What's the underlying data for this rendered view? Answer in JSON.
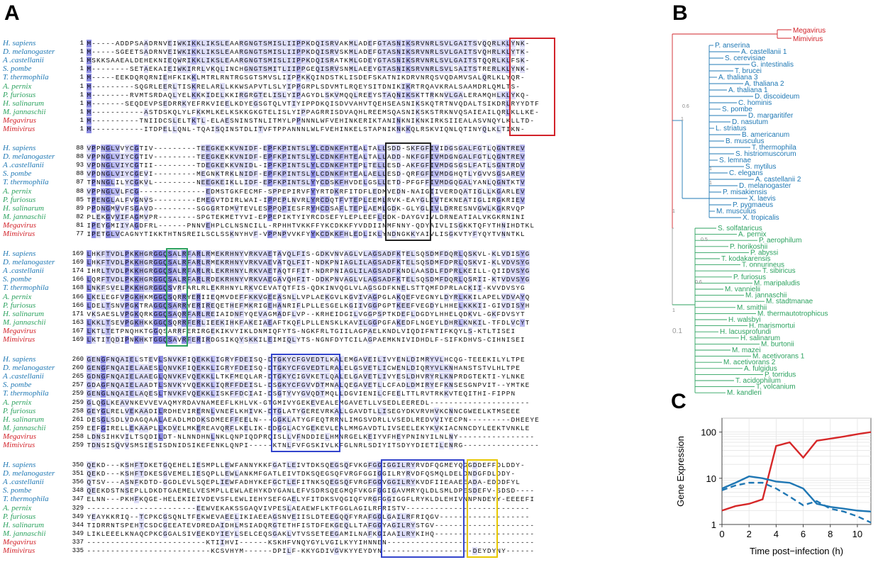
{
  "panels": {
    "a": "A",
    "b": "B",
    "c": "C"
  },
  "colors": {
    "virus": "#d2232a",
    "eukaryote": "#1f78b4",
    "archaea": "#2ca25f"
  },
  "alignment": {
    "blocks": [
      {
        "rows": [
          {
            "species": "H. sapiens",
            "group": "eukaryote",
            "start": "1",
            "seq": "M-----ADDPSAADRNVEIWKIKKLIKSLEAARGNGTSMISLIIPPKDQISRVAKMLADEFGTASNIKSRVNRLSVLGAITSVQQRLKLYNK-"
          },
          {
            "species": "D. melanogaster",
            "group": "eukaryote",
            "start": "1",
            "seq": "M-----SGEETSADRNVEIWKIKKLIKSLEAARGNGTSMISLIIPPKDQISRVSKMLADEFGTASNIKSRVNRLSVLGAITSVQHRLKLYTK-"
          },
          {
            "species": "A .castellanii",
            "group": "eukaryote",
            "start": "1",
            "seq": "MSKKSAAEALDEHEKNIEQWRIKKLIKSLEAARGNGTSMISLIIPPKDQISRATKMLGDEYGTASNIKSRVNRLSVLGAITSTQQRLKLFSK-"
          },
          {
            "species": "S. pombe",
            "group": "eukaryote",
            "start": "1",
            "seq": "M--------SETAEKAIEIWKIRRLVKQLINCHGNGTSMITLIIPPGEQISRVSNMLAEEYGTASNIKSRVNRLSVLSAITSTRERLKLYNK-"
          },
          {
            "species": "T. thermophila",
            "group": "eukaryote",
            "start": "1",
            "seq": "M-----EEKDQRQRNIEHFKIKKLMTRLRNTRGSGTSMVSLIIPPKKQINDSTKLISDEFSKATNIKDRVNRQSVQDAMVSALQRLKLYQR-"
          },
          {
            "species": "A. pernix",
            "group": "archaea",
            "start": "1",
            "seq": "M---------SQGRLEERLTISKRELARLLKKWSAPVTLSLYIPPGRPLSDVMTLRQEYSITDNIKIKRTRQAVKRALSAAMDRLQMLTS-"
          },
          {
            "species": "P. furiosus",
            "group": "archaea",
            "start": "1",
            "seq": "M--------RVMTSRDAQLYELKKKIDELKKIRGRGTELISLYIPAGYDLSKVMQQLREEYSTAQNIKSKTTRKNVLGALERAMQHLKLYKQ-"
          },
          {
            "species": "H. salinarum",
            "group": "archaea",
            "start": "1",
            "seq": "M-------SEQDEVPSEDRRKYEFRKVIEELKDYEGSGTQLVTIYIPPDKQISDVVAHVTQEHSEASNIKSKQTRTNVQDALTSIKDRLRYYDTF"
          },
          {
            "species": "M. jannaschii",
            "group": "archaea",
            "start": "1",
            "seq": "M-----------ASTDSKQLYLFKKMLKELKSKKGKGTELISLYIPPAGRRISDVAQHLREEMSQASNIKSKSTRKNVQSAIEAILQRLKLLKE-"
          },
          {
            "species": "Megavirus",
            "group": "virus",
            "start": "1",
            "seq": "M----------TNIIDCSLELTKTL-ELAESNINSTNLITMYLPPNNNLWFVEHINKERIKTANINKNIKNKIRKSIIEALASVNQYLKLLTD-"
          },
          {
            "species": "Mimivirus",
            "group": "virus",
            "start": "1",
            "seq": "M-----------ITDPELLQNL-TQAISQINSTDLITVFTPPANNNLWLFVEHINKELSTAPNIKNKKQLRSKVIQNLQTINYQLKLTIKN-"
          }
        ]
      },
      {
        "rows": [
          {
            "species": "H. sapiens",
            "group": "eukaryote",
            "start": "88",
            "seq": "VPPNGLVVYCGTIV---------TEEGKEKKVNIDF-EPFKPINTSLYLCDNKFHTEALTALLSDD-SKFGFIVIDGSGALFGTLQGNTREV"
          },
          {
            "species": "D. melanogaster",
            "group": "eukaryote",
            "start": "88",
            "seq": "VPPNGLVIYCGTIV---------TEEGKEKKVNIDF-EPFKPINTSLYLCDNKFHTEALTALLADD-NKFGFIVMDGNGALFGTLQGNTREV"
          },
          {
            "species": "A .castellanii",
            "group": "eukaryote",
            "start": "93",
            "seq": "VPDNGLVIYCGTII---------TDEGKEKKVNIDL-IPFKPINTSLYLCDNKFHTEPLTELLESD-AKFGFIVMDGSGSLFATLSGNTRDV"
          },
          {
            "species": "S. pombe",
            "group": "eukaryote",
            "start": "88",
            "seq": "VPDNGLVIYCGEVI---------MEGNKTRKLNIDF-EPFKPINTSLYLCDNKFHTEALAELLESD-QRFGFIVMDGHQTLYGVVSGSAREV"
          },
          {
            "species": "T. thermophila",
            "group": "eukaryote",
            "start": "87",
            "seq": "TPNNGLILYCGKVL---------NEEGKEIKLLIDF-EPFKPINTSLYYCDSKFHVDELGSLLETD-PFGFFIVMDGQGALYANLQGNTKTV"
          },
          {
            "species": "A. pernix",
            "group": "archaea",
            "start": "88",
            "seq": "VPPNGLVLFCG--------------EDMSTGKFECMF-SPPEPIRVFYYRTDKRFITDFLEDMVEDN-NAIGIIVERDQATIGLLKGARLEV"
          },
          {
            "species": "P. furiosus",
            "group": "archaea",
            "start": "85",
            "seq": "TPENGLALFVGNVS---------EMEGVTDIRLWAI-IPPEPLNVRLYRCDQTFVTEPLEEMLRVK-EAYGLIVTEKNEATIGLIRGKRIEV"
          },
          {
            "species": "H. salinarum",
            "group": "archaea",
            "start": "89",
            "seq": "PPDNGMVVFSGAVD---------SGGGRTDMVTEVLESPPQPIESFRYHCDSAFLTEPLAEMLGDK-GLYGLIVLDRRESNVGWLKGKRVQP"
          },
          {
            "species": "M. jannaschii",
            "group": "archaea",
            "start": "82",
            "seq": "PLEKGVVIFAGMVPR--------SPGTEKMETYVI-EPPEPIKTYIYRCDSEFYLEPLEEFLEDK-DAYGVIVLDRNEATIALVKGKRNINI"
          },
          {
            "species": "Megavirus",
            "group": "virus",
            "start": "81",
            "seq": "IPEYGMIIYAGDFRL------PNNVEHPLCLNSNCILL-RPHHTVKKFFYKCDKKFYVDDIINMFNNY-QDYAIVLISGKKTQFYTHNIHDTKL"
          },
          {
            "species": "Mimivirus",
            "group": "virus",
            "start": "77",
            "seq": "IPETGLVCAGNYTIKKTHTNSREILSCLSSKNYHVF-VPPNPVVKFYYKCDKKFHLEDLIKLYNDNGKKYAIVLISGKVTYFYQYTVNNTKL"
          }
        ]
      },
      {
        "rows": [
          {
            "species": "H. sapiens",
            "group": "eukaryote",
            "start": "169",
            "seq": "LHKFTVDLPKKHGRGGQSALRFARLRMEKRHNYVRKVAETAVQLFIS-GDKVNVAGLVLAGSADFKTELSQSDMFDQRLQSKVL-KLVDISYG"
          },
          {
            "species": "D. melanogaster",
            "group": "eukaryote",
            "start": "169",
            "seq": "LHKFTVDLPKKHGRGGQSALRFARLRMEKRHNYVRKVAEVATQLFIT-NDKPNIAGLILAGSADFKTELSQSDMFDPRLQSKVI-KLVDVSYG"
          },
          {
            "species": "A .castellanii",
            "group": "eukaryote",
            "start": "174",
            "seq": "IHRLTVDLPKKHGRGGQSALRFARLRLEKRHNYLRKVAETAQTFFIT-NDRPNIAGLILAGSADFKNDLAASDLFDPRLKEILL-QIIDVSYG"
          },
          {
            "species": "S. pombe",
            "group": "eukaryote",
            "start": "166",
            "seq": "LQRFTVDLPKKHGRGGQSALRFARLRDEKRHNYVRKVAEGAVQHFIT-DDKPNVAGLVLAGSADFKTELSQSDMFDQRLQSRII-KTVDVSYG"
          },
          {
            "species": "T. thermophila",
            "group": "eukaryote",
            "start": "168",
            "seq": "LNKFSVELPKKHGRGGQSVRFARLRLEKRHNYLRKVCEVATQTFIS-QDKINVQGLVLAGSGDFKNELSTTQMFDPRLACKII-KVVDVSYG"
          },
          {
            "species": "A. pernix",
            "group": "archaea",
            "start": "166",
            "seq": "LKELEGFVPGKHKMGGQSQRRYERIIEQMVDEFFKKVGEEASNLLVPLAEKGVLKGVIVAGPGLAKQEFVEGNYLDYRLKKILAPELVDVAYQ"
          },
          {
            "species": "P. furiosus",
            "group": "archaea",
            "start": "166",
            "seq": "LDELTSNVPGKTRAGGQSARRYERIREQETHEFMKRIGEHANRIFLPLLESGELKGIIVGGPGPTKEEFVEGDYLHHELKKKII-GIVDISYH"
          },
          {
            "species": "H. salinarum",
            "group": "archaea",
            "start": "171",
            "seq": "VKSAESLVPGKQRKGGQSAQRFARLREIAIDNFYQEVAGMADFLVP--KRHEIDGILVGGPSPTKDEFLDGDYLHHELQDKVL-GKFDVSYT"
          },
          {
            "species": "M. jannaschii",
            "group": "archaea",
            "start": "163",
            "seq": "LKKLTSEVPGKHKKGGQSQRRFERLIEEKIHKFAKEIAEAFTKQFLPLLENSKLKAVILGGPGFAKEDFLNGEYLDHRLKNKIL-TFDLVCYT"
          },
          {
            "species": "Megavirus",
            "group": "virus",
            "start": "167",
            "seq": "LKTLTETPNQHKTGGQSARRFERIRGEKIKVYIKLDNMIQFYTS-NGKFRLTGIILAGPAELKNDLVIQDIFNTIFKQYLS-KTLTISEI"
          },
          {
            "species": "Mimivirus",
            "group": "virus",
            "start": "169",
            "seq": "LKTITQDIPNKHKTGGQSAVRFERIRDGSIKQYSKKILEIMIQLYTS-NGNFDYTCILAGPAEMKNIVIDHDLF-SIFKDHVS-CIHNISEI"
          }
        ]
      },
      {
        "rows": [
          {
            "species": "H. sapiens",
            "group": "eukaryote",
            "start": "260",
            "seq": "GENGFNQAIELSTEVLSNVKFIQEKKLIGRYFDEISQ-DTGKYCFGVEDTLKALEMGAVEILIVYENLDIMRYVLHCQG-TEEEKILYLTPE"
          },
          {
            "species": "D. melanogaster",
            "group": "eukaryote",
            "start": "260",
            "seq": "GENGFNQAIELAAESLQNVKFIQEKKLIGRYFDEISQ-DTGKYCFGVEDTLRALELGSVETLICWENLDIQRYVLKNHANSTSTVLHLTPE"
          },
          {
            "species": "A .castellanii",
            "group": "eukaryote",
            "start": "265",
            "seq": "GDNGFNQAIELAAEGLQNVKFVQEKKLLTKFMEQLAR-DTGKYCIGVKETLQALELGAVETLIVYESLDHVRYRLKNPRDGTEKTI-YLNKE"
          },
          {
            "species": "S. pombe",
            "group": "eukaryote",
            "start": "257",
            "seq": "GDAGFNQAIELAADTLSNVKYVQEKKLIQRFFDEISL-DSGKYCFGVVDTMNALQEGAVETLLCFADLDMIRYEFKNSESGNPVIT--YMTKE"
          },
          {
            "species": "T. thermophila",
            "group": "eukaryote",
            "start": "259",
            "seq": "GENGLNQAIELAQESLTNVKFVQEKKLISKFFDCIAI-DSGTYVYGVQDTMQLLDGVIENILCFEELTTLRVTRKKVTEQITHI-FIPPN"
          },
          {
            "species": "A. pernix",
            "group": "archaea",
            "start": "259",
            "seq": "GLQGLKEAVNKEVVEVAQMYRDAVNAMEEFLKHLVK-GTGMIVYGEKEVEALEMGAVETLLVSEDLEEREDL---------------------"
          },
          {
            "species": "P. furiosus",
            "group": "archaea",
            "start": "258",
            "seq": "GEYGLRELVEKAADILRDHEVIRERNLVNEFLKHIVK-DTGLATYGEREVRKALLGAVDTLLISEGYDKVRVHVKCNNCGWEELKTMSEEE"
          },
          {
            "species": "H. salinarum",
            "group": "archaea",
            "start": "261",
            "seq": "DESGLSDLVDAGQAALAEADLMDDKSDMEEFFEELN---GGKLATYGFEQTRRNLIMGSVDRLLVSEDLREDVVIYECPN---------DHEEYE"
          },
          {
            "species": "M. jannaschii",
            "group": "archaea",
            "start": "259",
            "seq": "EEFGIRELLEKAAPLLKDVELMKEREAVQRFLKELIK-EDGGLACYGEKEVLEALMMGAVDTLIVSEELEKYKVKIACNNCDYLEEKTVNKLE"
          },
          {
            "species": "Megavirus",
            "group": "virus",
            "start": "258",
            "seq": "LDNSIHKVILTSQDILDT-NLNNDHNLNKLQNPIQDPRQISLLVFNDDIELHMNRGELKEIYVFHEYPNINYILNLNY----------------"
          },
          {
            "species": "Mimivirus",
            "group": "virus",
            "start": "259",
            "seq": "TDNSISQVVSMSIESISDNIDSIKEFENKLQNPI-----KTNLFVFGSKIVLKFGLNRLSDIYITSDYYDIETILENRG----------------"
          }
        ]
      },
      {
        "rows": [
          {
            "species": "H. sapiens",
            "group": "eukaryote",
            "start": "350",
            "seq": "QEKD---KSHFTDKETGQEHELIESMPLLEWFANNYKKFGATLEIVTDKSQEGSQFVKGFGGIGGILRYRVDFQGMEYQGGDDEFFDLDDY-"
          },
          {
            "species": "D. melanogaster",
            "group": "eukaryote",
            "start": "351",
            "seq": "QEKD---KSHFTDKESGVEMELIESQPLLEWLANKMFGATLEIVTDKSQEGSQFVRGFGGIGGILRYRVDFQSMQLDELDNDGFDLDDY-"
          },
          {
            "species": "A .castellanii",
            "group": "eukaryote",
            "start": "356",
            "seq": "QTSV---ASNFKDTD-GGDLEVLSQEPLIEWFADHYKEFGCTLEFITNKSQEGSQFVRGFGGVGGILRYKVDFIIEAAEEADA-EDDDFYL"
          },
          {
            "species": "S. pombe",
            "group": "eukaryote",
            "start": "348",
            "seq": "QEEKDSTNSEPLLDKDTGAEMELVESMPLLEWLAEHYKDYGANLEFVSDRSQEGMQFVKGFGGIGAVMRYQLDLSMLDPESDEFV-SDSD----"
          },
          {
            "species": "T. thermophila",
            "group": "eukaryote",
            "start": "347",
            "seq": "ELNN---PKHFKQGE-HELEKIEIVDEVSFLEWLIEHYSEFGAELYFITDKSVQGIQFVRGFGGIGGFLRYKLDLEHIVNNPNDEYY-EEEEFI"
          },
          {
            "species": "A. pernix",
            "group": "archaea",
            "start": "329",
            "seq": "-----------------------EEWVEKAKSSGAQVIVPESLAEAEWFLKTFGGLAGILRFRISTV--------------------------"
          },
          {
            "species": "P. furiosus",
            "group": "archaea",
            "start": "349",
            "seq": "YEAYKKRIQ--TCPKCGSQNLTFEKWEVAEELIKIAEEAGSNVEIISLDTEEGQQFYRAFGGLGAILRFRIQGV-------------------"
          },
          {
            "species": "H. salinarum",
            "group": "archaea",
            "start": "344",
            "seq": "TIDRRNTSPEHTCSDCGEEATEVDREDAIDHLMSIADQRGTETHFISTDFEKGEQLLTAFGGYAGILRYSTGV---------------------"
          },
          {
            "species": "M. jannaschii",
            "group": "archaea",
            "start": "349",
            "seq": "LIKLEEELKNAQCPKCGGALSIVEEKDYIEYLSELCEQSGAKLVTVSSETEEGAMILNAFKGIAAILRYKIHQ---------------------"
          },
          {
            "species": "Megavirus",
            "group": "virus",
            "start": "337",
            "seq": "-------------------------KTIIHVI------KSKHFVNQYGYLVGILKYYIHNNEN-------------------------------"
          },
          {
            "species": "Mimivirus",
            "group": "virus",
            "start": "335",
            "seq": "--------------------------KCSVHYM------DPILF-KKYGDIVGVKYYEYDYN-------------------DEYDYNY------"
          }
        ]
      }
    ]
  },
  "tree": {
    "virus_leaves": [
      "Megavirus",
      "Mimivirus"
    ],
    "eukaryote_leaves": [
      "P. anserina",
      "A. castellanii 1",
      "S. cerevisiae",
      "G. intestinalis",
      "T. brucei",
      "A. thaliana 3",
      "A. thaliana 2",
      "A. thaliana 1",
      "D. discoideum",
      "C. hominis",
      "S. pombe",
      "D. margaritifer",
      "D. nasutum",
      "L. striatus",
      "B. americanum",
      "B. musculus",
      "T. thermophila",
      "S. histriomuscorum",
      "S. lemnae",
      "S. mytilus",
      "C. elegans",
      "A. castellanii 2",
      "D. melanogaster",
      "P. misakiensis",
      "X. laevis",
      "P. pygmaeus",
      "M. musculus",
      "X. tropicalis"
    ],
    "archaea_leaves": [
      "S. solfataricus",
      "A. pernix",
      "P. aerophilum",
      "P. horikoshii",
      "P. abyssi",
      "T. kodakarensis",
      "T. onnurineus",
      "T. sibiricus",
      "P. furiosus",
      "M. maripaludis",
      "M. vannielii",
      "M. jannaschii",
      "M. stadtmanae",
      "M. smithii",
      "M. thermautotrophicus",
      "H. walsbyi",
      "H. marismortui",
      "H. lacusprofundi",
      "H. salinarum",
      "M. burtonii",
      "M. mazei",
      "M. acetivorans 1",
      "M. acetivorans 2",
      "A. fulgidus",
      "P. torridus",
      "T. acidophilum",
      "T. volcanium",
      "M. kandleri"
    ],
    "support_values": [
      "1",
      "0.6",
      "0.6",
      "1",
      "1",
      "1",
      "1",
      "0.5"
    ],
    "scale_label": "0.1"
  },
  "chart_data": {
    "type": "line",
    "title": "",
    "xlabel": "Time post−infection (h)",
    "ylabel": "Gene Expression",
    "xlim": [
      0,
      11
    ],
    "ylim": [
      1,
      200
    ],
    "yscale": "log",
    "xticks": [
      "0",
      "2",
      "4",
      "6",
      "8",
      "10"
    ],
    "yticks": [
      "1",
      "10",
      "100"
    ],
    "series": [
      {
        "color": "#d62728",
        "dash": false,
        "x": [
          0,
          1,
          2,
          3,
          4,
          5,
          6,
          7,
          8,
          9,
          10,
          11
        ],
        "y": [
          2,
          2.5,
          2.8,
          3.5,
          50,
          60,
          28,
          65,
          72,
          80,
          90,
          100
        ]
      },
      {
        "color": "#1f77b4",
        "dash": false,
        "x": [
          0,
          1,
          2,
          3,
          4,
          5,
          6,
          7,
          8,
          9,
          10,
          11
        ],
        "y": [
          6,
          8,
          11,
          10,
          8.5,
          8,
          6,
          2.8,
          2.4,
          2.2,
          2.0,
          1.9
        ]
      },
      {
        "color": "#1f77b4",
        "dash": true,
        "x": [
          0,
          1,
          2,
          3,
          4,
          5,
          6,
          7,
          8,
          9,
          10,
          11
        ],
        "y": [
          5.5,
          7,
          8,
          8,
          6,
          4,
          2.6,
          3.2,
          2.2,
          1.9,
          1.5,
          1.1
        ]
      }
    ]
  }
}
